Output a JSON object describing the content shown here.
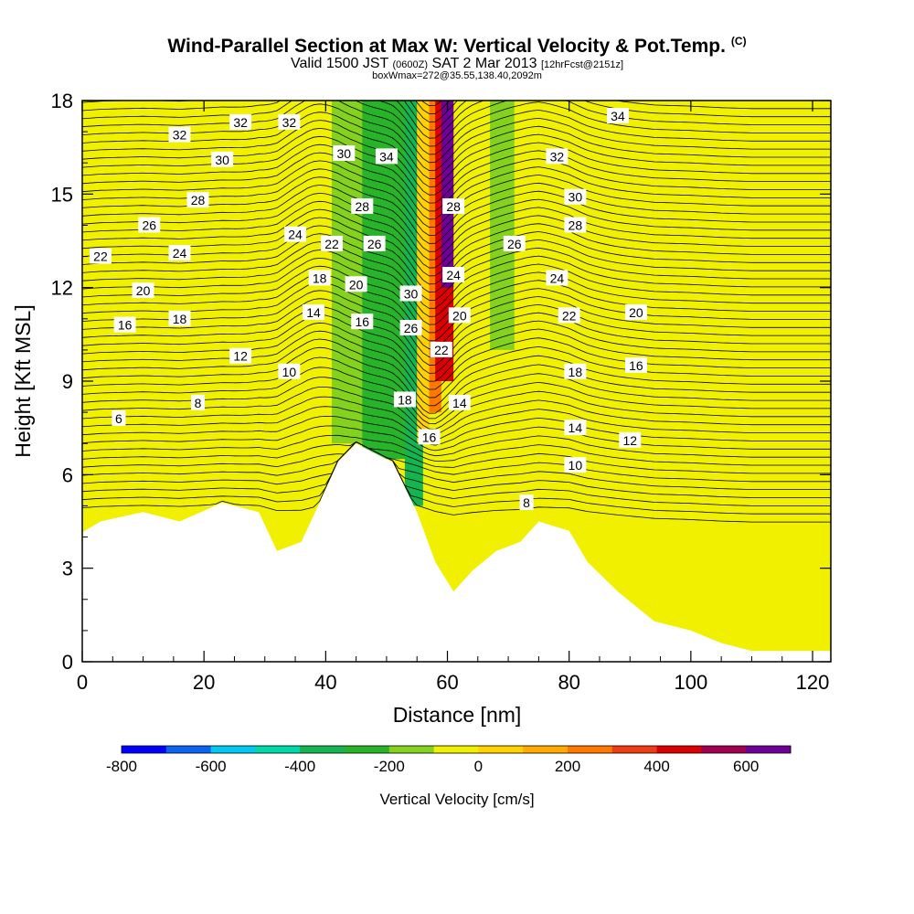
{
  "header": {
    "title": "Wind-Parallel Section at Max W: Vertical Velocity & Pot.Temp.",
    "copyright": "(C)",
    "valid_prefix": "Valid 1500 JST",
    "valid_utc": "(0600Z)",
    "valid_date": "SAT 2 Mar 2013",
    "forecast": "[12hrFcst@2151z]",
    "box_info": "boxWmax=272@35.55,138.40,2092m"
  },
  "chart_data": {
    "type": "heatmap",
    "xlabel": "Distance [nm]",
    "ylabel": "Height [Kft MSL]",
    "xlim": [
      0,
      123
    ],
    "ylim": [
      0,
      18
    ],
    "x_ticks": [
      0,
      20,
      40,
      60,
      80,
      100,
      120
    ],
    "y_ticks": [
      0,
      3,
      6,
      9,
      12,
      15,
      18
    ],
    "colorbar": {
      "title": "Vertical Velocity [cm/s]",
      "ticks": [
        -800,
        -600,
        -400,
        -200,
        0,
        200,
        400,
        600
      ],
      "levels": [
        -800,
        -700,
        -600,
        -500,
        -400,
        -300,
        -200,
        -100,
        0,
        100,
        200,
        300,
        400,
        500,
        600,
        700
      ],
      "colors": [
        "#0000ff",
        "#0a64f0",
        "#00c8f0",
        "#00d8a8",
        "#14b450",
        "#28b428",
        "#84d21e",
        "#f0f000",
        "#ffd200",
        "#ffaa00",
        "#ff7800",
        "#f03c14",
        "#dc0000",
        "#a00050",
        "#6e0096"
      ]
    },
    "vertical_velocity_regions": [
      {
        "x": [
          41,
          47
        ],
        "y_bottom": 7.0,
        "value": -150
      },
      {
        "x": [
          46,
          54
        ],
        "y_bottom": 6.5,
        "value": -300
      },
      {
        "x": [
          53,
          56
        ],
        "y_bottom": 5.0,
        "value": -350
      },
      {
        "x": [
          55,
          57
        ],
        "y_bottom": 7.0,
        "value": 50
      },
      {
        "x": [
          57,
          59
        ],
        "y_bottom": 8.0,
        "value": 250
      },
      {
        "x": [
          58,
          61
        ],
        "y_bottom": 9.0,
        "value": 400
      },
      {
        "x": [
          59,
          61
        ],
        "y_bottom": 12.0,
        "value": 600
      },
      {
        "x": [
          63,
          67
        ],
        "y_bottom": 9.0,
        "value": -100
      },
      {
        "x": [
          67,
          71
        ],
        "y_bottom": 10.0,
        "value": -200
      }
    ],
    "terrain_nm_kft": [
      [
        0,
        4.15
      ],
      [
        3,
        4.5
      ],
      [
        10,
        4.8
      ],
      [
        16,
        4.5
      ],
      [
        23,
        5.1
      ],
      [
        29,
        4.8
      ],
      [
        32,
        3.55
      ],
      [
        36,
        3.85
      ],
      [
        39,
        5.1
      ],
      [
        42,
        6.4
      ],
      [
        45,
        7.0
      ],
      [
        51,
        6.4
      ],
      [
        55,
        4.8
      ],
      [
        58,
        3.2
      ],
      [
        61,
        2.25
      ],
      [
        64,
        2.9
      ],
      [
        68,
        3.55
      ],
      [
        72,
        3.85
      ],
      [
        75,
        4.5
      ],
      [
        80,
        4.2
      ],
      [
        83,
        3.2
      ],
      [
        88,
        2.25
      ],
      [
        94,
        1.3
      ],
      [
        100,
        1.0
      ],
      [
        105,
        0.6
      ],
      [
        110,
        0.35
      ],
      [
        123,
        0.35
      ]
    ],
    "theta_contour_labels": [
      {
        "label": "6",
        "x": 6,
        "y": 7.8
      },
      {
        "label": "8",
        "x": 19,
        "y": 8.3
      },
      {
        "label": "8",
        "x": 73,
        "y": 5.1
      },
      {
        "label": "10",
        "x": 34,
        "y": 9.3
      },
      {
        "label": "10",
        "x": 81,
        "y": 6.3
      },
      {
        "label": "12",
        "x": 26,
        "y": 9.8
      },
      {
        "label": "12",
        "x": 90,
        "y": 7.1
      },
      {
        "label": "14",
        "x": 38,
        "y": 11.2
      },
      {
        "label": "14",
        "x": 62,
        "y": 8.3
      },
      {
        "label": "14",
        "x": 81,
        "y": 7.5
      },
      {
        "label": "16",
        "x": 7,
        "y": 10.8
      },
      {
        "label": "16",
        "x": 46,
        "y": 10.9
      },
      {
        "label": "16",
        "x": 57,
        "y": 7.2
      },
      {
        "label": "16",
        "x": 91,
        "y": 9.5
      },
      {
        "label": "18",
        "x": 16,
        "y": 11.0
      },
      {
        "label": "18",
        "x": 39,
        "y": 12.3
      },
      {
        "label": "18",
        "x": 53,
        "y": 8.4
      },
      {
        "label": "18",
        "x": 81,
        "y": 9.3
      },
      {
        "label": "20",
        "x": 10,
        "y": 11.9
      },
      {
        "label": "20",
        "x": 45,
        "y": 12.1
      },
      {
        "label": "20",
        "x": 62,
        "y": 11.1
      },
      {
        "label": "20",
        "x": 91,
        "y": 11.2
      },
      {
        "label": "22",
        "x": 3,
        "y": 13.0
      },
      {
        "label": "22",
        "x": 41,
        "y": 13.4
      },
      {
        "label": "22",
        "x": 59,
        "y": 10.0
      },
      {
        "label": "22",
        "x": 80,
        "y": 11.1
      },
      {
        "label": "24",
        "x": 16,
        "y": 13.1
      },
      {
        "label": "24",
        "x": 35,
        "y": 13.7
      },
      {
        "label": "24",
        "x": 61,
        "y": 12.4
      },
      {
        "label": "24",
        "x": 78,
        "y": 12.3
      },
      {
        "label": "26",
        "x": 11,
        "y": 14.0
      },
      {
        "label": "26",
        "x": 48,
        "y": 13.4
      },
      {
        "label": "26",
        "x": 54,
        "y": 10.7
      },
      {
        "label": "26",
        "x": 71,
        "y": 13.4
      },
      {
        "label": "28",
        "x": 19,
        "y": 14.8
      },
      {
        "label": "28",
        "x": 46,
        "y": 14.6
      },
      {
        "label": "28",
        "x": 61,
        "y": 14.6
      },
      {
        "label": "28",
        "x": 81,
        "y": 14.0
      },
      {
        "label": "30",
        "x": 23,
        "y": 16.1
      },
      {
        "label": "30",
        "x": 43,
        "y": 16.3
      },
      {
        "label": "30",
        "x": 54,
        "y": 11.8
      },
      {
        "label": "30",
        "x": 81,
        "y": 14.9
      },
      {
        "label": "32",
        "x": 16,
        "y": 16.9
      },
      {
        "label": "32",
        "x": 26,
        "y": 17.3
      },
      {
        "label": "32",
        "x": 34,
        "y": 17.3
      },
      {
        "label": "32",
        "x": 78,
        "y": 16.2
      },
      {
        "label": "34",
        "x": 50,
        "y": 16.2
      },
      {
        "label": "34",
        "x": 88,
        "y": 17.5
      }
    ]
  }
}
